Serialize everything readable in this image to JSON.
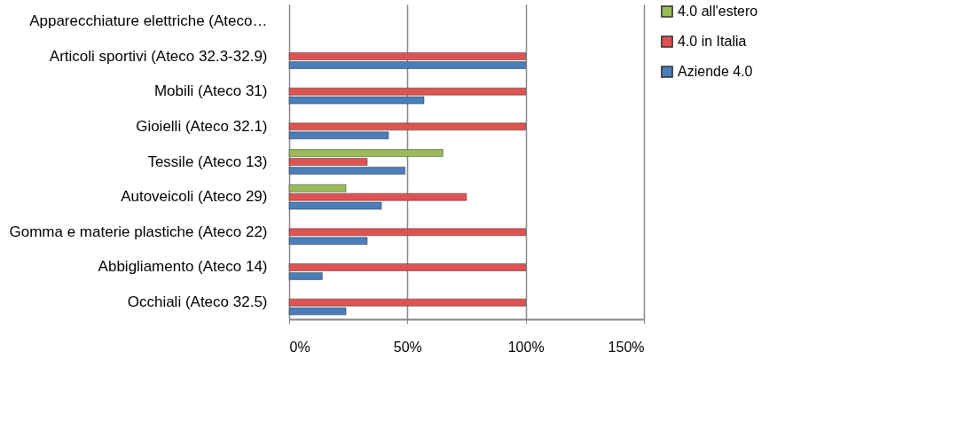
{
  "chart_data": {
    "type": "bar",
    "orientation": "horizontal",
    "categories": [
      "Apparecchiature elettriche (Ateco…",
      "Articoli sportivi (Ateco 32.3-32.9)",
      "Mobili (Ateco 31)",
      "Gioielli (Ateco 32.1)",
      "Tessile (Ateco 13)",
      "Autoveicoli  (Ateco 29)",
      "Gomma e materie plastiche  (Ateco 22)",
      "Abbigliamento (Ateco 14)",
      "Occhiali (Ateco 32.5)"
    ],
    "series": [
      {
        "name": "Aziende 4.0",
        "color": "#4a7ebb",
        "values": [
          null,
          100,
          57,
          42,
          49,
          39,
          33,
          14,
          24
        ]
      },
      {
        "name": "4.0 in Italia",
        "color": "#e05252",
        "values": [
          null,
          100,
          100,
          100,
          33,
          75,
          100,
          100,
          100
        ]
      },
      {
        "name": "4.0 all'estero",
        "color": "#9bbb59",
        "values": [
          null,
          null,
          null,
          null,
          65,
          24,
          null,
          null,
          null
        ]
      }
    ],
    "xlim": [
      0,
      150
    ],
    "xticks": [
      {
        "value": 0,
        "label": "0%"
      },
      {
        "value": 50,
        "label": "50%"
      },
      {
        "value": 100,
        "label": "100%"
      },
      {
        "value": 150,
        "label": "150%"
      }
    ],
    "grid": "x",
    "legend": "right"
  }
}
